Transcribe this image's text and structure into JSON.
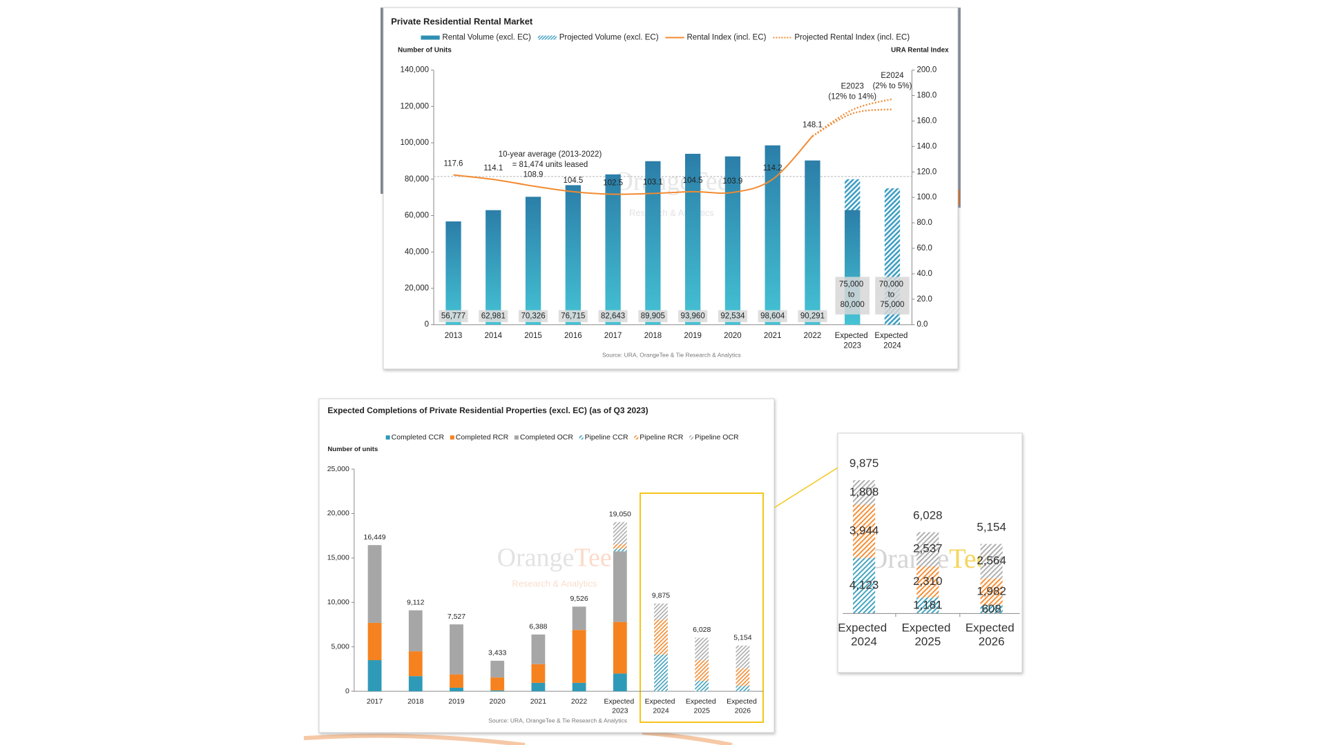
{
  "chart_data": [
    {
      "type": "combo",
      "title": "Private Residential Rental Market",
      "y_label": "Number of Units",
      "y2_label": "URA Rental Index",
      "categories": [
        "2013",
        "2014",
        "2015",
        "2016",
        "2017",
        "2018",
        "2019",
        "2020",
        "2021",
        "2022",
        "Expected 2023",
        "Expected 2024"
      ],
      "series": [
        {
          "name": "Rental Volume (excl. EC)",
          "type": "bar",
          "color": "#2f8fb3",
          "values": [
            56777,
            62981,
            70326,
            76715,
            82643,
            89905,
            93960,
            92534,
            98604,
            90291,
            63000,
            null
          ],
          "value_labels": [
            "56,777",
            "62,981",
            "70,326",
            "76,715",
            "82,643",
            "89,905",
            "93,960",
            "92,534",
            "98,604",
            "90,291",
            null,
            null
          ]
        },
        {
          "name": "Projected Volume (excl. EC)",
          "type": "bar",
          "pattern": "hatch",
          "color": "#3a9cc2",
          "values": [
            null,
            null,
            null,
            null,
            null,
            null,
            null,
            null,
            null,
            null,
            80000,
            75000
          ],
          "value_labels": [
            null,
            null,
            null,
            null,
            null,
            null,
            null,
            null,
            null,
            null,
            "75,000 to 80,000",
            "70,000 to 75,000"
          ]
        },
        {
          "name": "Rental Index (incl. EC)",
          "type": "line",
          "axis": "y2",
          "color": "#f28a30",
          "values": [
            117.6,
            114.1,
            108.9,
            104.5,
            102.5,
            103.1,
            104.5,
            103.9,
            114.2,
            148.1,
            null,
            null
          ]
        },
        {
          "name": "Projected Rental Index (incl. EC)",
          "type": "line",
          "axis": "y2",
          "color": "#f28a30",
          "dash": true,
          "values": [
            null,
            null,
            null,
            null,
            null,
            null,
            null,
            null,
            null,
            148.1,
            168.8,
            177.3
          ],
          "values_low": [
            null,
            null,
            null,
            null,
            null,
            null,
            null,
            null,
            null,
            148.1,
            165.9,
            169.2
          ]
        }
      ],
      "projection_labels": [
        null,
        null,
        null,
        null,
        null,
        null,
        null,
        null,
        null,
        null,
        [
          "E2023",
          "(12% to 14%)"
        ],
        [
          "E2024",
          "(2% to 5%)"
        ]
      ],
      "reference_line": {
        "value": 81474,
        "label": [
          "10-year average (2013-2022)",
          "= 81,474 units leased"
        ]
      },
      "ylim": [
        0,
        140000
      ],
      "yticks": [
        0,
        {
          "value": 20000,
          "label": "20,000"
        },
        {
          "value": 40000,
          "label": "40,000"
        },
        {
          "value": 60000,
          "label": "60,000"
        },
        {
          "value": 80000,
          "label": "80,000"
        },
        {
          "value": 100000,
          "label": "100,000"
        },
        {
          "value": 120000,
          "label": "120,000"
        },
        {
          "value": 140000,
          "label": "140,000"
        }
      ],
      "y2lim": [
        0,
        200
      ],
      "y2ticks": [
        {
          "value": 0,
          "label": "0.0"
        },
        {
          "value": 20,
          "label": "20.0"
        },
        {
          "value": 40,
          "label": "40.0"
        },
        {
          "value": 60,
          "label": "60.0"
        },
        {
          "value": 80,
          "label": "80.0"
        },
        {
          "value": 100,
          "label": "100.0"
        },
        {
          "value": 120,
          "label": "120.0"
        },
        {
          "value": 140,
          "label": "140.0"
        },
        {
          "value": 160,
          "label": "160.0"
        },
        {
          "value": 180,
          "label": "180.0"
        },
        {
          "value": 200,
          "label": "200.0"
        }
      ],
      "watermark": [
        "OrangeTee",
        "Research & Analytics"
      ],
      "source": "Source: URA, OrangeTee & Tie Research & Analytics"
    },
    {
      "type": "stacked_bar",
      "title": "Expected Completions of Private Residential Properties (excl. EC) (as of Q3 2023)",
      "y_label": "Number of units",
      "categories": [
        "2017",
        "2018",
        "2019",
        "2020",
        "2021",
        "2022",
        "Expected 2023",
        "Expected 2024",
        "Expected 2025",
        "Expected 2026"
      ],
      "series": [
        {
          "name": "Completed CCR",
          "color": "#2e9ab8",
          "values": [
            3500,
            1700,
            400,
            100,
            950,
            950,
            2000,
            null,
            null,
            null
          ]
        },
        {
          "name": "Completed RCR",
          "color": "#f5821f",
          "values": [
            4200,
            2800,
            1500,
            1450,
            2100,
            5950,
            5800,
            null,
            null,
            null
          ]
        },
        {
          "name": "Completed OCR",
          "color": "#a6a6a6",
          "values": [
            8749,
            4612,
            5627,
            1883,
            3338,
            2626,
            7950,
            null,
            null,
            null
          ]
        },
        {
          "name": "Pipeline CCR",
          "color": "#2e9ab8",
          "pattern": "hatch",
          "values": [
            null,
            null,
            null,
            null,
            null,
            null,
            300,
            4123,
            1181,
            608
          ]
        },
        {
          "name": "Pipeline RCR",
          "color": "#f5821f",
          "pattern": "hatch",
          "values": [
            null,
            null,
            null,
            null,
            null,
            null,
            500,
            3944,
            2310,
            1982
          ]
        },
        {
          "name": "Pipeline OCR",
          "color": "#a6a6a6",
          "pattern": "hatch",
          "values": [
            null,
            null,
            null,
            null,
            null,
            null,
            2500,
            1808,
            2537,
            2564
          ]
        }
      ],
      "totals": [
        16449,
        9112,
        7527,
        3433,
        6388,
        9526,
        19050,
        9875,
        6028,
        5154
      ],
      "total_labels": [
        "16,449",
        "9,112",
        "7,527",
        "3,433",
        "6,388",
        "9,526",
        "19,050",
        "9,875",
        "6,028",
        "5,154"
      ],
      "ylim": [
        0,
        25000
      ],
      "yticks": [
        0,
        {
          "value": 5000,
          "label": "5,000"
        },
        {
          "value": 10000,
          "label": "10,000"
        },
        {
          "value": 15000,
          "label": "15,000"
        },
        {
          "value": 20000,
          "label": "20,000"
        },
        {
          "value": 25000,
          "label": "25,000"
        }
      ],
      "watermark": [
        "OrangeTee",
        "Research & Analytics"
      ],
      "source": "Source: URA, OrangeTee & Tie Research & Analytics"
    },
    {
      "type": "stacked_bar_inset",
      "categories": [
        "Expected 2024",
        "Expected 2025",
        "Expected 2026"
      ],
      "series": [
        {
          "color": "#2e9ab8",
          "pattern": "hatch",
          "values": [
            4123,
            1181,
            608
          ],
          "value_labels": [
            "4,123",
            "1,181",
            "608"
          ]
        },
        {
          "color": "#f5821f",
          "pattern": "hatch",
          "values": [
            3944,
            2310,
            1982
          ],
          "value_labels": [
            "3,944",
            "2,310",
            "1,982"
          ]
        },
        {
          "color": "#a6a6a6",
          "pattern": "hatch",
          "values": [
            1808,
            2537,
            2564
          ],
          "value_labels": [
            "1,808",
            "2,537",
            "2,564"
          ]
        }
      ],
      "totals": [
        9875,
        6028,
        5154
      ],
      "total_labels": [
        "9,875",
        "6,028",
        "5,154"
      ],
      "watermark": "OrangeTee"
    }
  ]
}
